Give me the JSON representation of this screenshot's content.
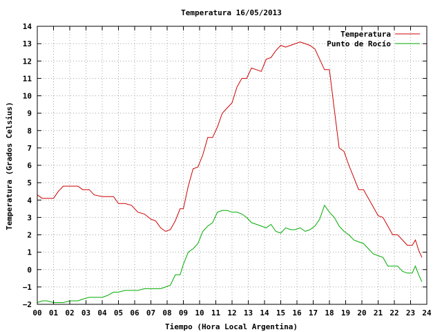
{
  "chart_data": {
    "type": "line",
    "title": "Temperatura 16/05/2013",
    "xlabel": "Tiempo (Hora Local Argentina)",
    "ylabel": "Temperatura (Grados Celsius)",
    "xlim": [
      0,
      24
    ],
    "ylim": [
      -2,
      14
    ],
    "x_ticks": [
      "00",
      "01",
      "02",
      "03",
      "04",
      "05",
      "06",
      "07",
      "08",
      "09",
      "10",
      "11",
      "12",
      "13",
      "14",
      "15",
      "16",
      "17",
      "18",
      "19",
      "20",
      "21",
      "22",
      "23",
      "24"
    ],
    "y_ticks": [
      -2,
      -1,
      0,
      1,
      2,
      3,
      4,
      5,
      6,
      7,
      8,
      9,
      10,
      11,
      12,
      13,
      14
    ],
    "grid": true,
    "legend_position": "top-right",
    "series": [
      {
        "name": "Temperatura",
        "color": "#cc0000",
        "x": [
          0,
          0.3,
          0.6,
          1.0,
          1.3,
          1.6,
          2.0,
          2.5,
          2.8,
          3.2,
          3.5,
          4.0,
          4.3,
          4.7,
          5.0,
          5.4,
          5.8,
          6.2,
          6.6,
          7.0,
          7.3,
          7.6,
          7.9,
          8.2,
          8.5,
          8.8,
          9.0,
          9.3,
          9.6,
          9.9,
          10.2,
          10.5,
          10.8,
          11.1,
          11.4,
          11.7,
          12.0,
          12.3,
          12.6,
          12.9,
          13.2,
          13.5,
          13.8,
          14.1,
          14.4,
          14.7,
          15.0,
          15.3,
          15.6,
          15.9,
          16.2,
          16.5,
          16.8,
          17.1,
          17.4,
          17.7,
          18.0,
          18.3,
          18.6,
          18.9,
          19.2,
          19.5,
          19.8,
          20.1,
          20.4,
          20.7,
          21.0,
          21.3,
          21.6,
          21.9,
          22.2,
          22.5,
          22.8,
          23.1,
          23.3,
          23.5,
          23.7
        ],
        "values": [
          4.3,
          4.1,
          4.1,
          4.1,
          4.5,
          4.8,
          4.8,
          4.8,
          4.6,
          4.6,
          4.3,
          4.2,
          4.2,
          4.2,
          3.8,
          3.8,
          3.7,
          3.3,
          3.2,
          2.9,
          2.8,
          2.4,
          2.2,
          2.3,
          2.8,
          3.5,
          3.5,
          4.8,
          5.8,
          5.9,
          6.6,
          7.6,
          7.6,
          8.2,
          9.0,
          9.3,
          9.6,
          10.5,
          11.0,
          11.0,
          11.6,
          11.5,
          11.4,
          12.1,
          12.2,
          12.6,
          12.9,
          12.8,
          12.9,
          13.0,
          13.1,
          13.0,
          12.9,
          12.7,
          12.1,
          11.5,
          11.5,
          9.2,
          7.0,
          6.8,
          6.0,
          5.3,
          4.6,
          4.6,
          4.1,
          3.6,
          3.1,
          3.0,
          2.5,
          2.0,
          2.0,
          1.7,
          1.4,
          1.4,
          1.7,
          1.1,
          0.7
        ]
      },
      {
        "name": "Punto de Rocío",
        "color": "#00aa00",
        "x": [
          0,
          0.3,
          0.6,
          1.0,
          1.3,
          1.6,
          2.0,
          2.5,
          2.8,
          3.2,
          3.5,
          4.0,
          4.3,
          4.7,
          5.0,
          5.4,
          5.8,
          6.2,
          6.6,
          7.0,
          7.3,
          7.6,
          7.9,
          8.2,
          8.5,
          8.8,
          9.0,
          9.3,
          9.6,
          9.9,
          10.2,
          10.5,
          10.8,
          11.1,
          11.4,
          11.7,
          12.0,
          12.3,
          12.6,
          12.9,
          13.2,
          13.5,
          13.8,
          14.1,
          14.4,
          14.7,
          15.0,
          15.3,
          15.6,
          15.9,
          16.2,
          16.5,
          16.8,
          17.1,
          17.4,
          17.7,
          18.0,
          18.3,
          18.6,
          18.9,
          19.2,
          19.5,
          19.8,
          20.1,
          20.4,
          20.7,
          21.0,
          21.3,
          21.6,
          21.9,
          22.2,
          22.5,
          22.8,
          23.1,
          23.3,
          23.5,
          23.7
        ],
        "values": [
          -1.9,
          -1.8,
          -1.8,
          -1.9,
          -1.9,
          -1.9,
          -1.8,
          -1.8,
          -1.7,
          -1.6,
          -1.6,
          -1.6,
          -1.5,
          -1.3,
          -1.3,
          -1.2,
          -1.2,
          -1.2,
          -1.1,
          -1.1,
          -1.1,
          -1.1,
          -1.0,
          -0.9,
          -0.3,
          -0.3,
          0.3,
          1.0,
          1.2,
          1.5,
          2.2,
          2.5,
          2.7,
          3.3,
          3.4,
          3.4,
          3.3,
          3.3,
          3.2,
          3.0,
          2.7,
          2.6,
          2.5,
          2.4,
          2.6,
          2.2,
          2.1,
          2.4,
          2.3,
          2.3,
          2.4,
          2.2,
          2.3,
          2.5,
          2.9,
          3.7,
          3.3,
          3.0,
          2.5,
          2.2,
          2.0,
          1.7,
          1.6,
          1.5,
          1.2,
          0.9,
          0.8,
          0.7,
          0.2,
          0.2,
          0.2,
          -0.1,
          -0.2,
          -0.2,
          0.2,
          -0.3,
          -0.7
        ]
      }
    ]
  }
}
